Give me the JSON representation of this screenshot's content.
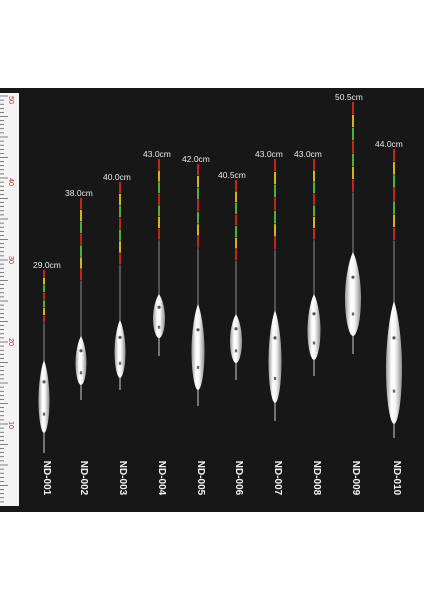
{
  "ruler": {
    "numbers": [
      "50",
      "40",
      "30",
      "20",
      "10"
    ]
  },
  "floats": [
    {
      "model": "ND-001",
      "length": "29.0cm"
    },
    {
      "model": "ND-002",
      "length": "38.0cm"
    },
    {
      "model": "ND-003",
      "length": "40.0cm"
    },
    {
      "model": "ND-004",
      "length": "43.0cm"
    },
    {
      "model": "ND-005",
      "length": "42.0cm"
    },
    {
      "model": "ND-006",
      "length": "40.5cm"
    },
    {
      "model": "ND-007",
      "length": "43.0cm"
    },
    {
      "model": "ND-008",
      "length": "43.0cm"
    },
    {
      "model": "ND-009",
      "length": "50.5cm"
    },
    {
      "model": "ND-010",
      "length": "44.0cm"
    }
  ],
  "colors": {
    "background": "#171717",
    "ruler": "#f4f4f4",
    "ruler_numbers": "#cc2222",
    "tip_red": "#d8261c",
    "tip_green": "#5bbf3a",
    "tip_yellow": "#e6c31e",
    "body": "#f5f5f5"
  }
}
